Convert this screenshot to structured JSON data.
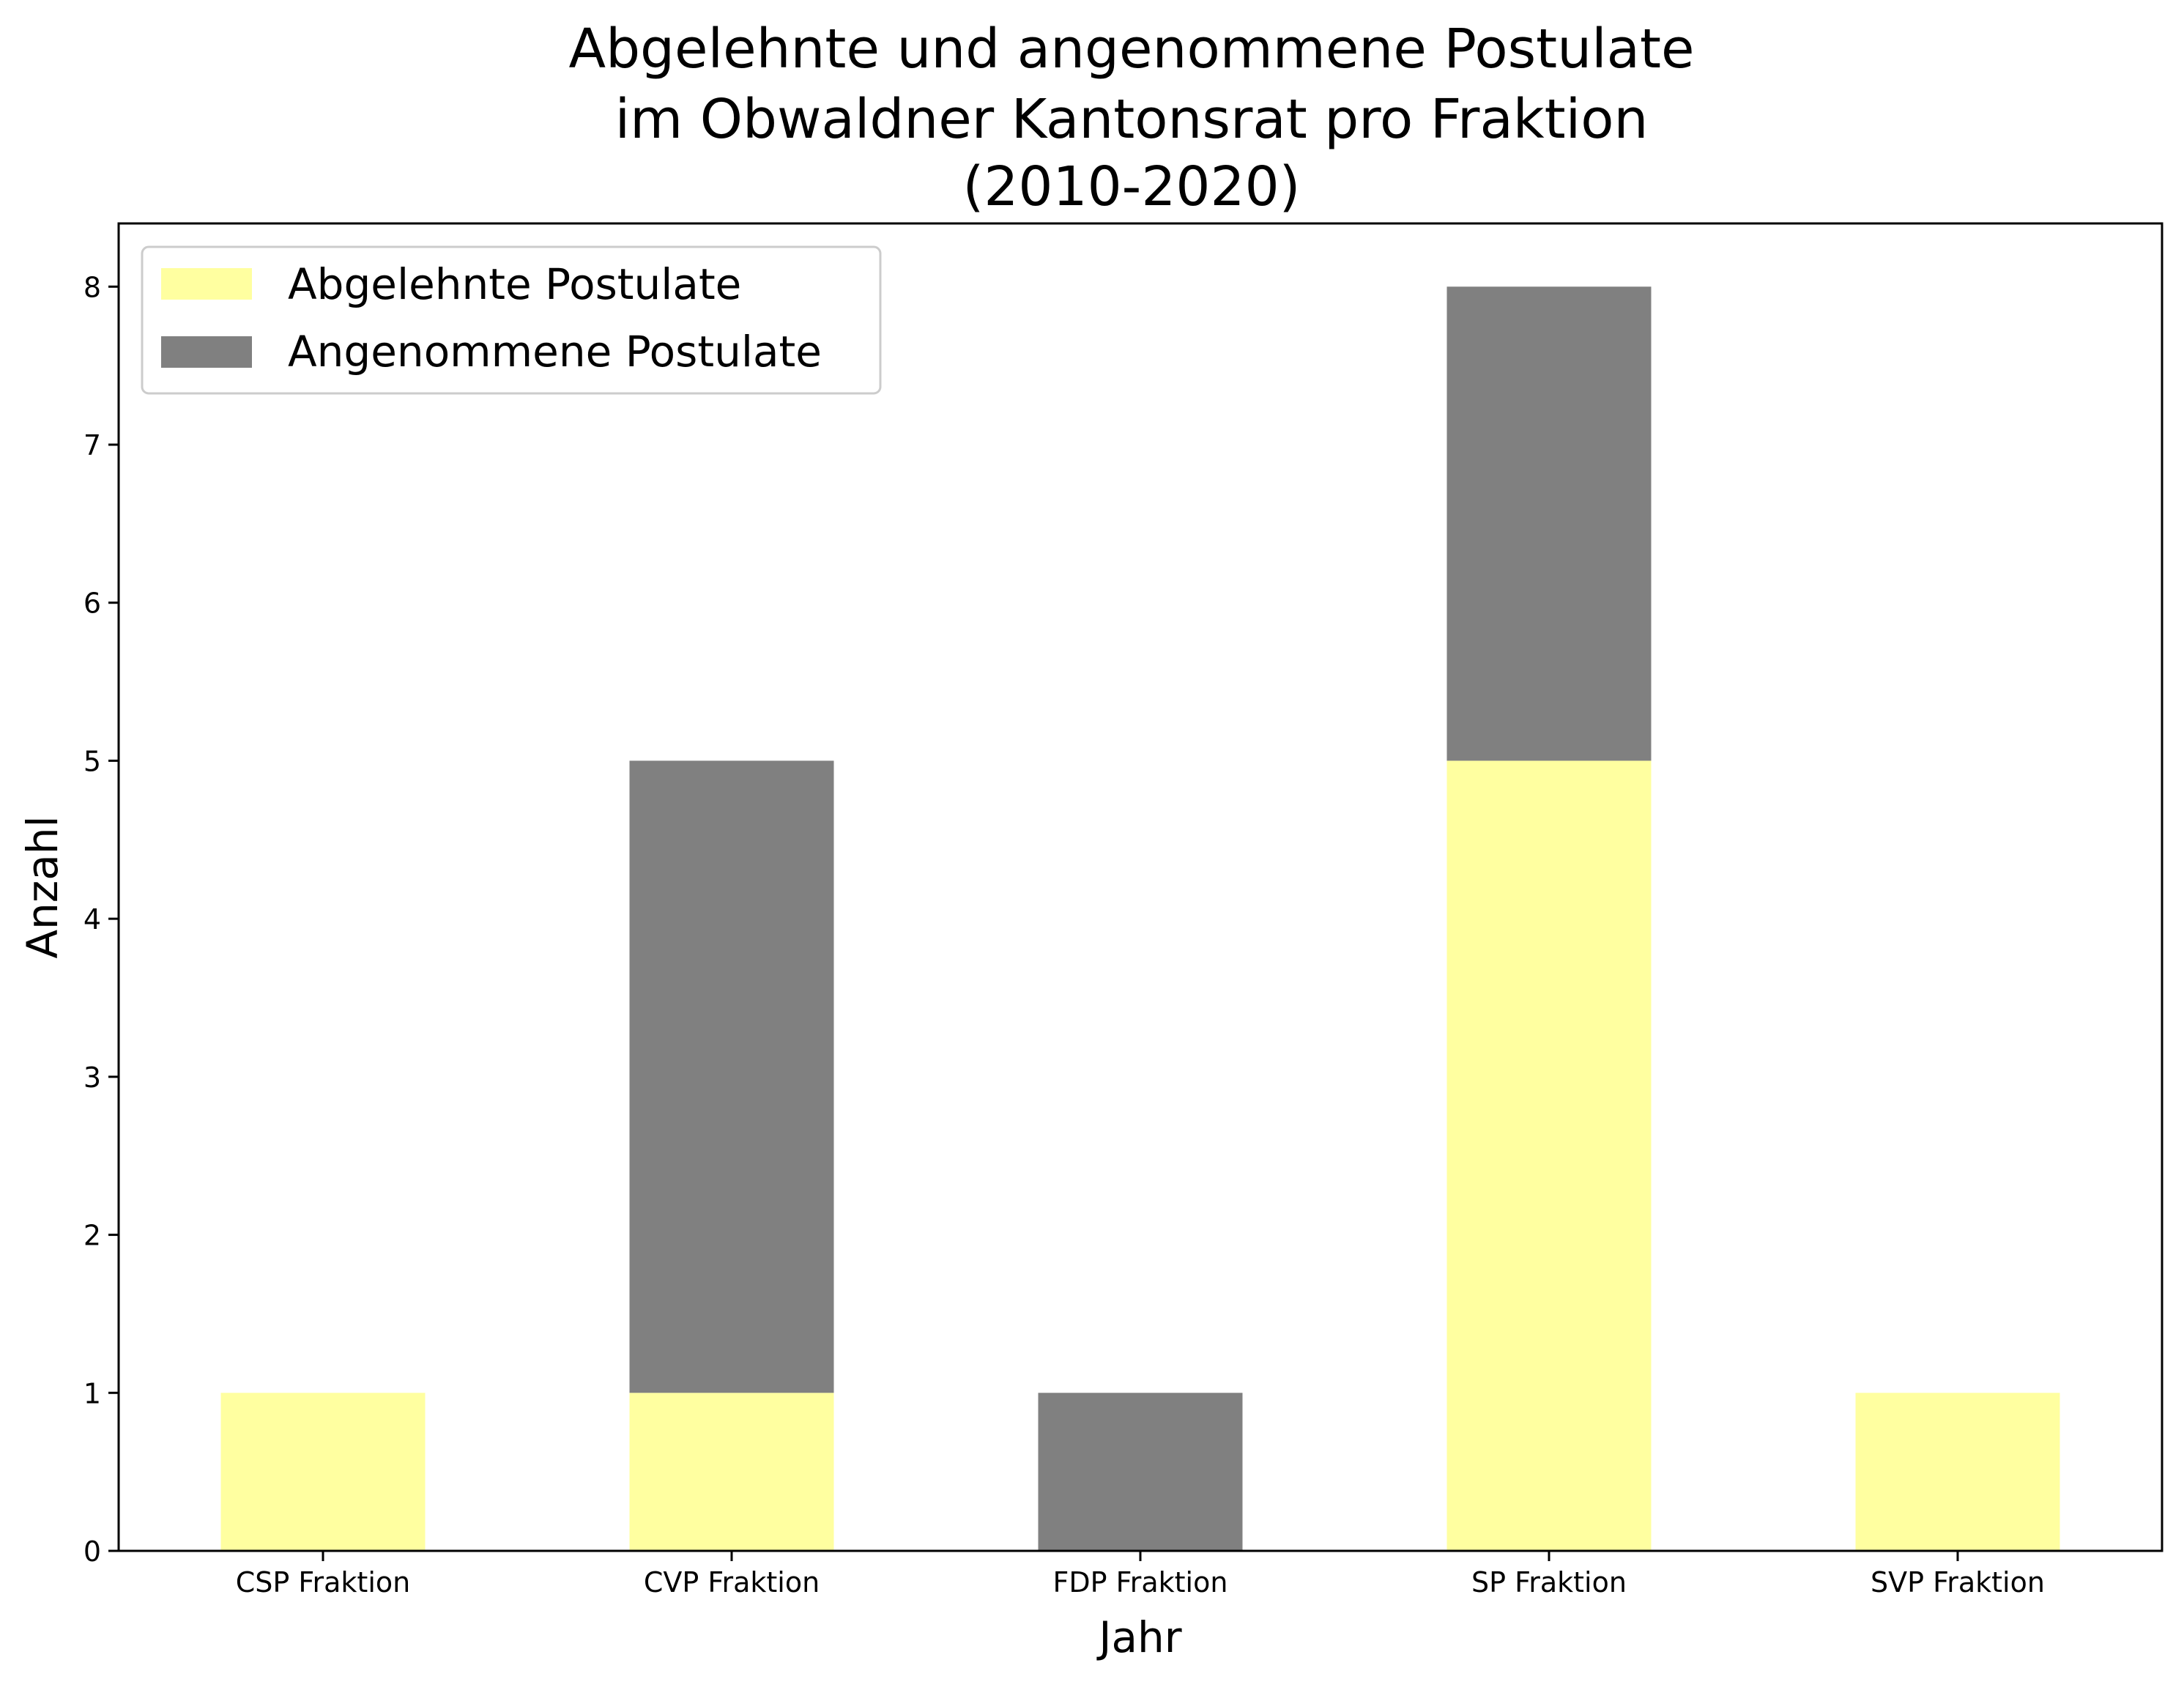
{
  "chart_data": {
    "type": "bar",
    "stacked": true,
    "title": [
      "Abgelehnte und angenommene Postulate",
      "im Obwaldner Kantonsrat pro Fraktion",
      "(2010-2020)"
    ],
    "xlabel": "Jahr",
    "ylabel": "Anzahl",
    "categories": [
      "CSP Fraktion",
      "CVP Fraktion",
      "FDP Fraktion",
      "SP Fraktion",
      "SVP Fraktion"
    ],
    "series": [
      {
        "name": "Abgelehnte Postulate",
        "color": "#ffffa0",
        "values": [
          1,
          1,
          0,
          5,
          1
        ]
      },
      {
        "name": "Angenommene Postulate",
        "color": "#808080",
        "values": [
          0,
          4,
          1,
          3,
          0
        ]
      }
    ],
    "yticks": [
      0,
      1,
      2,
      3,
      4,
      5,
      6,
      7,
      8
    ],
    "ylim": [
      0,
      8.4
    ],
    "grid": false,
    "legend_position": "top-left"
  }
}
